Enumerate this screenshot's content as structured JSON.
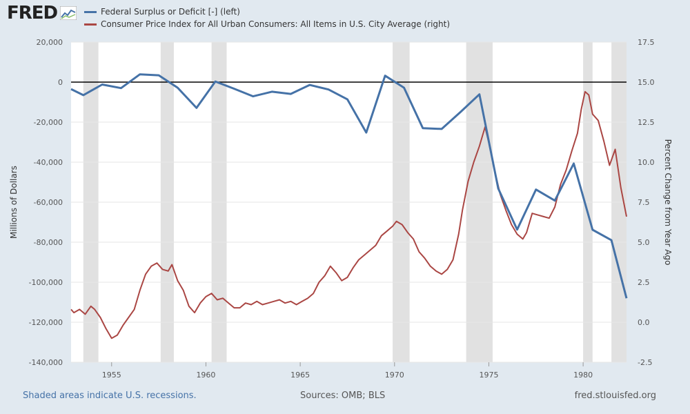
{
  "brand": {
    "name": "FRED"
  },
  "legend": [
    {
      "label": "Federal Surplus or Deficit [-] (left)",
      "color": "#4572a7"
    },
    {
      "label": "Consumer Price Index for All Urban Consumers: All Items in U.S. City Average (right)",
      "color": "#aa4643"
    }
  ],
  "footer": {
    "recession_note": "Shaded areas indicate U.S. recessions.",
    "sources": "Sources: OMB; BLS",
    "site": "fred.stlouisfed.org"
  },
  "chart_data": {
    "type": "line",
    "xlim": [
      1952.85,
      1982.3
    ],
    "x_ticks": [
      1955,
      1960,
      1965,
      1970,
      1975,
      1980
    ],
    "y_left": {
      "label": "Millions of Dollars",
      "range": [
        -140000,
        20000
      ],
      "ticks": [
        20000,
        0,
        -20000,
        -40000,
        -60000,
        -80000,
        -100000,
        -120000,
        -140000
      ],
      "tick_labels": [
        "20,000",
        "0",
        "-20,000",
        "-40,000",
        "-60,000",
        "-80,000",
        "-100,000",
        "-120,000",
        "-140,000"
      ]
    },
    "y_right": {
      "label": "Percent Change from Year Ago",
      "range": [
        -2.5,
        17.5
      ],
      "ticks": [
        17.5,
        15.0,
        12.5,
        10.0,
        7.5,
        5.0,
        2.5,
        0.0,
        -2.5
      ],
      "tick_labels": [
        "17.5",
        "15.0",
        "12.5",
        "10.0",
        "7.5",
        "5.0",
        "2.5",
        "0.0",
        "-2.5"
      ]
    },
    "zero_line_left": 0,
    "grid": true,
    "recessions": [
      [
        1953.5,
        1954.3
      ],
      [
        1957.6,
        1958.3
      ],
      [
        1960.3,
        1961.1
      ],
      [
        1969.9,
        1970.8
      ],
      [
        1973.8,
        1975.2
      ],
      [
        1980.0,
        1980.5
      ],
      [
        1981.5,
        1982.3
      ]
    ],
    "series": [
      {
        "name": "Federal Surplus or Deficit [-] (left)",
        "axis": "left",
        "color": "#4572a7",
        "x": [
          1952.85,
          1953.5,
          1954.5,
          1955.5,
          1956.5,
          1957.5,
          1958.5,
          1959.5,
          1960.5,
          1961.5,
          1962.5,
          1963.5,
          1964.5,
          1965.5,
          1966.5,
          1967.5,
          1968.5,
          1969.5,
          1970.5,
          1971.5,
          1972.5,
          1973.5,
          1974.5,
          1975.5,
          1976.5,
          1977.5,
          1978.5,
          1979.5,
          1980.5,
          1981.5,
          1982.3
        ],
        "values": [
          -3500,
          -6500,
          -1200,
          -3000,
          3900,
          3400,
          -2800,
          -12900,
          300,
          -3300,
          -7100,
          -4800,
          -5900,
          -1400,
          -3700,
          -8600,
          -25200,
          3200,
          -2800,
          -23000,
          -23400,
          -14900,
          -6100,
          -53200,
          -73700,
          -53700,
          -59200,
          -40700,
          -73800,
          -79000,
          -108000
        ]
      },
      {
        "name": "Consumer Price Index for All Urban Consumers: All Items in U.S. City Average (right)",
        "axis": "right",
        "color": "#aa4643",
        "x": [
          1952.85,
          1953.0,
          1953.3,
          1953.6,
          1953.9,
          1954.1,
          1954.4,
          1954.7,
          1955.0,
          1955.3,
          1955.6,
          1955.9,
          1956.2,
          1956.5,
          1956.8,
          1957.1,
          1957.4,
          1957.7,
          1958.0,
          1958.2,
          1958.5,
          1958.8,
          1959.1,
          1959.4,
          1959.7,
          1960.0,
          1960.3,
          1960.6,
          1960.9,
          1961.2,
          1961.5,
          1961.8,
          1962.1,
          1962.4,
          1962.7,
          1963.0,
          1963.3,
          1963.6,
          1963.9,
          1964.2,
          1964.5,
          1964.8,
          1965.1,
          1965.4,
          1965.7,
          1966.0,
          1966.3,
          1966.6,
          1966.9,
          1967.2,
          1967.5,
          1967.8,
          1968.1,
          1968.4,
          1968.7,
          1969.0,
          1969.3,
          1969.6,
          1969.9,
          1970.1,
          1970.4,
          1970.7,
          1971.0,
          1971.3,
          1971.6,
          1971.9,
          1972.2,
          1972.5,
          1972.8,
          1973.1,
          1973.4,
          1973.6,
          1973.9,
          1974.2,
          1974.5,
          1974.8,
          1975.0,
          1975.3,
          1975.6,
          1975.9,
          1976.2,
          1976.5,
          1976.8,
          1977.0,
          1977.3,
          1977.6,
          1977.9,
          1978.2,
          1978.5,
          1978.8,
          1979.1,
          1979.4,
          1979.7,
          1979.9,
          1980.1,
          1980.3,
          1980.5,
          1980.8,
          1981.1,
          1981.4,
          1981.7,
          1982.0,
          1982.3
        ],
        "values": [
          0.8,
          0.6,
          0.8,
          0.5,
          1.0,
          0.8,
          0.3,
          -0.4,
          -1.0,
          -0.8,
          -0.2,
          0.3,
          0.8,
          2.0,
          3.0,
          3.5,
          3.7,
          3.3,
          3.2,
          3.6,
          2.6,
          2.0,
          1.0,
          0.6,
          1.2,
          1.6,
          1.8,
          1.4,
          1.5,
          1.2,
          0.9,
          0.9,
          1.2,
          1.1,
          1.3,
          1.1,
          1.2,
          1.3,
          1.4,
          1.2,
          1.3,
          1.1,
          1.3,
          1.5,
          1.8,
          2.5,
          2.9,
          3.5,
          3.1,
          2.6,
          2.8,
          3.4,
          3.9,
          4.2,
          4.5,
          4.8,
          5.4,
          5.7,
          6.0,
          6.3,
          6.1,
          5.6,
          5.2,
          4.4,
          4.0,
          3.5,
          3.2,
          3.0,
          3.3,
          3.9,
          5.5,
          7.0,
          8.8,
          10.0,
          11.0,
          12.2,
          11.2,
          9.5,
          8.0,
          7.0,
          6.1,
          5.5,
          5.2,
          5.6,
          6.8,
          6.7,
          6.6,
          6.5,
          7.2,
          8.6,
          9.5,
          10.7,
          11.8,
          13.3,
          14.4,
          14.2,
          13.0,
          12.6,
          11.3,
          9.8,
          10.8,
          8.4,
          6.6
        ]
      }
    ]
  }
}
